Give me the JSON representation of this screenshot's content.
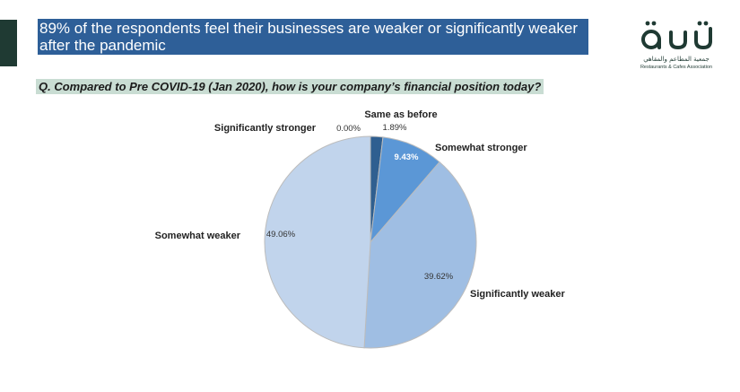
{
  "headline": {
    "line1": "89% of the respondents feel their businesses are weaker or significantly weaker",
    "line2": "after the pandemic"
  },
  "logo": {
    "arabic": "جمعية المطاعم والمقاهي",
    "english": "Restaurants & Cafes Association"
  },
  "question": "Q. Compared to Pre COVID-19 (Jan 2020), how is your company’s financial position today?",
  "colors": {
    "headline_bg": "#2e5f98",
    "question_bg": "#c9ddd3",
    "side_bar": "#1f3a33"
  },
  "chart_data": {
    "type": "pie",
    "start": "12 o'clock, clockwise",
    "slices": [
      {
        "label": "Same as before",
        "value": 1.89,
        "value_label": "1.89%",
        "color": "#2f5f90"
      },
      {
        "label": "Somewhat stronger",
        "value": 9.43,
        "value_label": "9.43%",
        "color": "#5b97d6"
      },
      {
        "label": "Significantly weaker",
        "value": 39.62,
        "value_label": "39.62%",
        "color": "#9fbee3"
      },
      {
        "label": "Somewhat weaker",
        "value": 49.06,
        "value_label": "49.06%",
        "color": "#c1d4ec"
      },
      {
        "label": "Significantly stronger",
        "value": 0.0,
        "value_label": "0.00%",
        "color": "#1f3f66"
      }
    ]
  }
}
